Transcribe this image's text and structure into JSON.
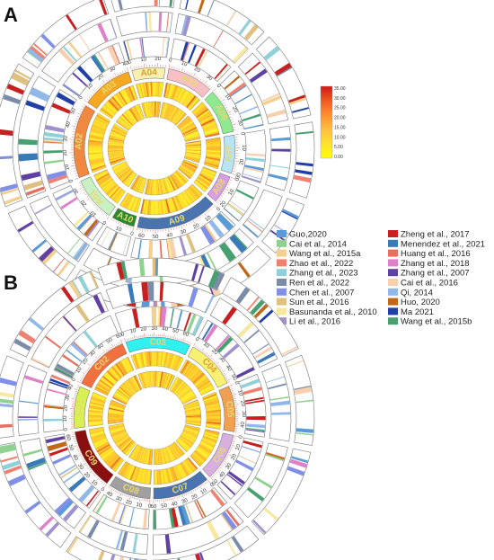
{
  "panels": [
    {
      "letter": "A",
      "chromosomes": [
        {
          "name": "A01",
          "length": 35,
          "color": "#c8f0c4",
          "labelColor": "#e8d870"
        },
        {
          "name": "A02",
          "length": 58,
          "color": "#f08840",
          "labelColor": "#e8d870"
        },
        {
          "name": "A03",
          "length": 40,
          "color": "#f5a820",
          "labelColor": "#e8d870"
        },
        {
          "name": "A04",
          "length": 26,
          "color": "#f8f0b0",
          "labelColor": "#d8a030"
        },
        {
          "name": "A05",
          "length": 36,
          "color": "#f8c0c4",
          "labelColor": "#e8d870"
        },
        {
          "name": "A06",
          "length": 35,
          "color": "#90e890",
          "labelColor": "#e8d870"
        },
        {
          "name": "A07",
          "length": 30,
          "color": "#b8e4f4",
          "labelColor": "#e8d870"
        },
        {
          "name": "A08",
          "length": 22,
          "color": "#d8a0e0",
          "labelColor": "#e8d870"
        },
        {
          "name": "A09",
          "length": 64,
          "color": "#4a74b0",
          "labelColor": "#e8d870"
        },
        {
          "name": "A10",
          "length": 18,
          "color": "#2e8a2e",
          "labelColor": "#e8d870"
        }
      ]
    },
    {
      "letter": "B",
      "chromosomes": [
        {
          "name": "C01",
          "length": 44,
          "color": "#d8f050",
          "labelColor": "#e8d870"
        },
        {
          "name": "C02",
          "length": 60,
          "color": "#f07040",
          "labelColor": "#e8d870"
        },
        {
          "name": "C03",
          "length": 68,
          "color": "#30f0f0",
          "labelColor": "#e8d870"
        },
        {
          "name": "C04",
          "length": 52,
          "color": "#f8f070",
          "labelColor": "#d8a030"
        },
        {
          "name": "C05",
          "length": 48,
          "color": "#f0a050",
          "labelColor": "#e8d870"
        },
        {
          "name": "C06",
          "length": 50,
          "color": "#d8b0e0",
          "labelColor": "#e8d870"
        },
        {
          "name": "C07",
          "length": 60,
          "color": "#4a74b0",
          "labelColor": "#e8d870"
        },
        {
          "name": "C08",
          "length": 44,
          "color": "#a0a0a0",
          "labelColor": "#e8d870"
        },
        {
          "name": "C09",
          "length": 64,
          "color": "#8a1010",
          "labelColor": "#e8d870"
        }
      ]
    }
  ],
  "color_scale": {
    "ticks": [
      "35.00",
      "30.00",
      "25.00",
      "20.00",
      "15.00",
      "10.00",
      "5.00",
      "0.00"
    ],
    "min": 0,
    "max": 35,
    "gradient": [
      "#ffff00",
      "#ffe030",
      "#ffbf40",
      "#ff9030",
      "#f05a20",
      "#d01818"
    ]
  },
  "legend": {
    "column1": [
      {
        "label": "Guo,2020",
        "color": "#5b9bd5"
      },
      {
        "label": "Cai et al., 2014",
        "color": "#90d090"
      },
      {
        "label": "Wang et al., 2015a",
        "color": "#f4d090"
      },
      {
        "label": "Zhao et al., 2022",
        "color": "#f08070"
      },
      {
        "label": "Zhang et al., 2023",
        "color": "#90d0d8"
      },
      {
        "label": "Ren et al., 2022",
        "color": "#7a8ca8"
      },
      {
        "label": "Chen et al., 2007",
        "color": "#8090e8"
      },
      {
        "label": "Sun et al., 2016",
        "color": "#e0c080"
      },
      {
        "label": "Basunanda et al., 2010",
        "color": "#f8e8a0"
      },
      {
        "label": "Li et al., 2016",
        "color": "#a090d0"
      }
    ],
    "column2": [
      {
        "label": "Zheng et al., 2017",
        "color": "#c82020"
      },
      {
        "label": "Menendez et al., 2021",
        "color": "#3a7ab8"
      },
      {
        "label": "Huang et al., 2016",
        "color": "#e87060"
      },
      {
        "label": "Zhang et al., 2018",
        "color": "#e080c8"
      },
      {
        "label": "Zhang et al., 2007",
        "color": "#6040a0"
      },
      {
        "label": "Cai et al., 2016",
        "color": "#f8d0b0"
      },
      {
        "label": "Qi, 2014",
        "color": "#90b8e8"
      },
      {
        "label": "Huo, 2020",
        "color": "#c06818"
      },
      {
        "label": "Ma 2021",
        "color": "#2040a8"
      },
      {
        "label": "Wang et al., 2015b",
        "color": "#48a070"
      }
    ]
  }
}
